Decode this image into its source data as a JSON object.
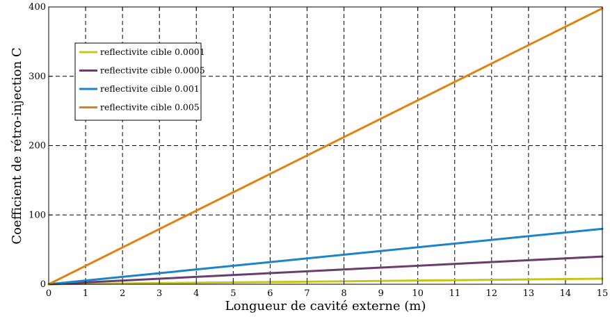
{
  "chart_data": {
    "type": "line",
    "title": "",
    "xlabel": "Longueur de cavité externe (m)",
    "ylabel": "Coefficient de rétro-injection C",
    "xlim": [
      0,
      15
    ],
    "ylim": [
      0,
      400
    ],
    "xticks": [
      "0",
      "1",
      "2",
      "3",
      "4",
      "5",
      "6",
      "7",
      "8",
      "9",
      "10",
      "11",
      "12",
      "13",
      "14",
      "15"
    ],
    "yticks": [
      "0",
      "100",
      "200",
      "300",
      "400"
    ],
    "grid": true,
    "legend_position": "top-left",
    "x": [
      0,
      15
    ],
    "series": [
      {
        "name": "reflectivite cible 0.0001",
        "color": "#c8c51a",
        "values": [
          0,
          8
        ]
      },
      {
        "name": "reflectivite cible 0.0005",
        "color": "#6b3d6e",
        "values": [
          0,
          40
        ]
      },
      {
        "name": "reflectivite cible 0.001",
        "color": "#1b83c9",
        "values": [
          0,
          80
        ]
      },
      {
        "name": "reflectivite cible 0.005",
        "color": "#e0820f",
        "values": [
          0,
          398
        ]
      }
    ]
  }
}
